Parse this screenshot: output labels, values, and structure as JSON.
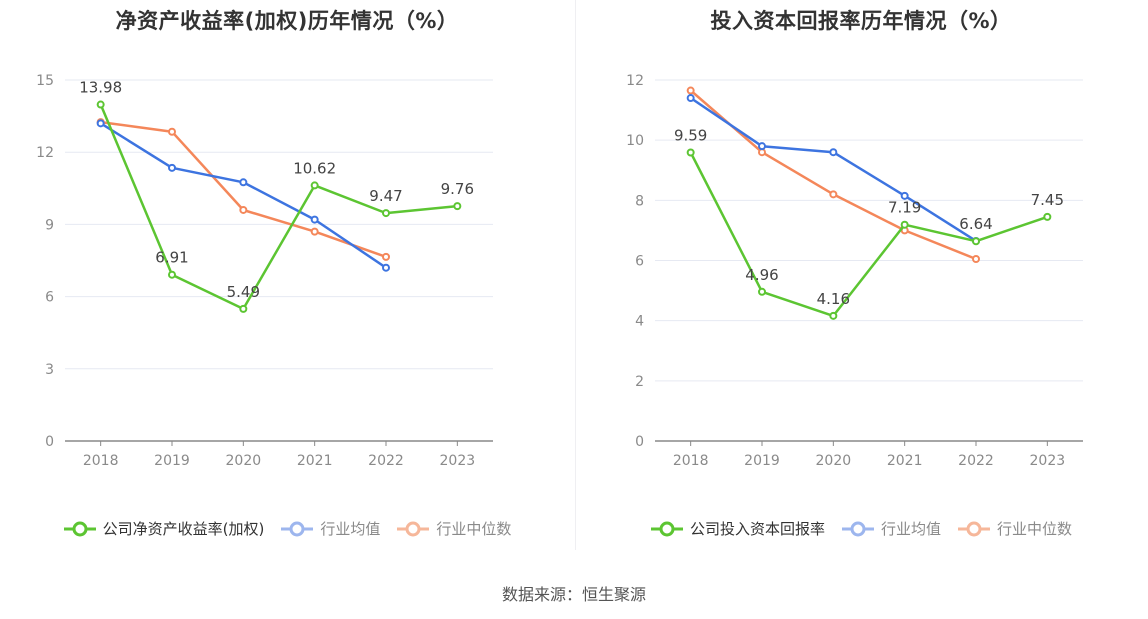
{
  "source": "数据来源：恒生聚源",
  "colors": {
    "company": "#5cc532",
    "avg": "#3d74e0",
    "median": "#f4875a",
    "grid": "#e6e9f2",
    "axis": "#888888"
  },
  "chart_data": [
    {
      "type": "line",
      "title": "净资产收益率(加权)历年情况（%）",
      "categories": [
        "2018",
        "2019",
        "2020",
        "2021",
        "2022",
        "2023"
      ],
      "ylim": [
        0,
        15
      ],
      "yticks": [
        0,
        3,
        6,
        9,
        12,
        15
      ],
      "grid": true,
      "legend_position": "bottom",
      "series": [
        {
          "name": "公司净资产收益率(加权)",
          "values": [
            13.98,
            6.91,
            5.49,
            10.62,
            9.47,
            9.76
          ],
          "labels": [
            "13.98",
            "6.91",
            "5.49",
            "10.62",
            "9.47",
            "9.76"
          ]
        },
        {
          "name": "行业均值",
          "values": [
            13.2,
            11.35,
            10.75,
            9.2,
            7.2,
            null
          ]
        },
        {
          "name": "行业中位数",
          "values": [
            13.25,
            12.85,
            9.6,
            8.7,
            7.65,
            null
          ]
        }
      ]
    },
    {
      "type": "line",
      "title": "投入资本回报率历年情况（%）",
      "categories": [
        "2018",
        "2019",
        "2020",
        "2021",
        "2022",
        "2023"
      ],
      "ylim": [
        0,
        12
      ],
      "yticks": [
        0,
        2,
        4,
        6,
        8,
        10,
        12
      ],
      "grid": true,
      "legend_position": "bottom",
      "series": [
        {
          "name": "公司投入资本回报率",
          "values": [
            9.59,
            4.96,
            4.16,
            7.19,
            6.64,
            7.45
          ],
          "labels": [
            "9.59",
            "4.96",
            "4.16",
            "7.19",
            "6.64",
            "7.45"
          ]
        },
        {
          "name": "行业均值",
          "values": [
            11.4,
            9.8,
            9.6,
            8.15,
            6.65,
            null
          ]
        },
        {
          "name": "行业中位数",
          "values": [
            11.65,
            9.6,
            8.2,
            7.0,
            6.05,
            null
          ]
        }
      ]
    }
  ]
}
